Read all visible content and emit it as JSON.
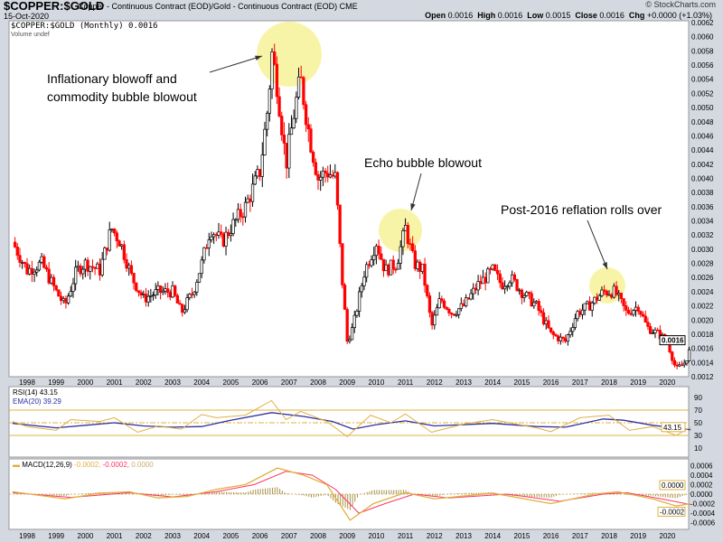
{
  "header": {
    "symbol": "$COPPER:$GOLD",
    "description": "Copper - Continuous Contract (EOD)/Gold - Continuous Contract (EOD)",
    "exchange": "CME",
    "date": "15-Oct-2020",
    "watermark": "© StockCharts.com",
    "ohlc": {
      "open_label": "Open",
      "open": "0.0016",
      "high_label": "High",
      "high": "0.0016",
      "low_label": "Low",
      "low": "0.0015",
      "close_label": "Close",
      "close": "0.0016",
      "chg_label": "Chg",
      "chg": "+0.0000 (+1.03%)"
    }
  },
  "legend": {
    "price": "$COPPER:$GOLD (Monthly) 0.0016",
    "volume": "Volume undef",
    "rsi": "RSI(14) 43.15",
    "ema": "EMA(20) 39.29",
    "macd": "MACD(12,26,9)",
    "macd_v1": "-0.0002,",
    "macd_v2": "-0.0002,",
    "macd_v3": "0.0000"
  },
  "annotations": [
    "Inflationary blowoff and",
    "commodity bubble blowout",
    "Echo bubble blowout",
    "Post-2016 reflation rolls over"
  ],
  "colors": {
    "up": "#000000",
    "down": "#ff0000",
    "highlight": "#f5f08a",
    "rsi": "#e0b040",
    "ema": "#3030a0",
    "macd": "#e0b040",
    "signal": "#ff3366"
  },
  "chart_data": [
    {
      "type": "candlestick",
      "title": "$COPPER:$GOLD (Monthly)",
      "scale": "linear",
      "ylim": [
        0.0012,
        0.0062
      ],
      "y_ticks": [
        "0.0062",
        "0.0060",
        "0.0058",
        "0.0056",
        "0.0054",
        "0.0052",
        "0.0050",
        "0.0048",
        "0.0046",
        "0.0044",
        "0.0042",
        "0.0040",
        "0.0038",
        "0.0036",
        "0.0034",
        "0.0032",
        "0.0030",
        "0.0028",
        "0.0026",
        "0.0024",
        "0.0022",
        "0.0020",
        "0.0018",
        "0.0016",
        "0.0014",
        "0.0012"
      ],
      "x_ticks": [
        "1998",
        "1999",
        "2000",
        "2001",
        "2002",
        "2003",
        "2004",
        "2005",
        "2006",
        "2007",
        "2008",
        "2009",
        "2010",
        "2011",
        "2012",
        "2013",
        "2014",
        "2015",
        "2016",
        "2017",
        "2018",
        "2019",
        "2020"
      ],
      "last_value": "0.0016",
      "closes": [
        [
          1997.5,
          0.0031
        ],
        [
          1998.0,
          0.0027
        ],
        [
          1998.5,
          0.0028
        ],
        [
          1999.0,
          0.0024
        ],
        [
          1999.3,
          0.0022
        ],
        [
          1999.7,
          0.0027
        ],
        [
          2000.0,
          0.0028
        ],
        [
          2000.5,
          0.0027
        ],
        [
          2000.9,
          0.0033
        ],
        [
          2001.2,
          0.0031
        ],
        [
          2001.6,
          0.0026
        ],
        [
          2002.0,
          0.0023
        ],
        [
          2002.5,
          0.0024
        ],
        [
          2003.0,
          0.0024
        ],
        [
          2003.3,
          0.0021
        ],
        [
          2003.7,
          0.0024
        ],
        [
          2004.0,
          0.0028
        ],
        [
          2004.3,
          0.0033
        ],
        [
          2004.7,
          0.0031
        ],
        [
          2005.0,
          0.0033
        ],
        [
          2005.5,
          0.0036
        ],
        [
          2006.0,
          0.0041
        ],
        [
          2006.3,
          0.0051
        ],
        [
          2006.4,
          0.0058
        ],
        [
          2006.6,
          0.0053
        ],
        [
          2006.9,
          0.0042
        ],
        [
          2007.2,
          0.005
        ],
        [
          2007.4,
          0.0054
        ],
        [
          2007.7,
          0.0046
        ],
        [
          2008.0,
          0.004
        ],
        [
          2008.3,
          0.0041
        ],
        [
          2008.6,
          0.004
        ],
        [
          2008.8,
          0.0027
        ],
        [
          2009.0,
          0.0017
        ],
        [
          2009.2,
          0.0019
        ],
        [
          2009.6,
          0.0027
        ],
        [
          2010.0,
          0.0031
        ],
        [
          2010.3,
          0.0027
        ],
        [
          2010.7,
          0.0028
        ],
        [
          2011.0,
          0.0033
        ],
        [
          2011.3,
          0.0028
        ],
        [
          2011.6,
          0.0027
        ],
        [
          2011.9,
          0.0019
        ],
        [
          2012.2,
          0.0023
        ],
        [
          2012.6,
          0.0021
        ],
        [
          2013.0,
          0.0022
        ],
        [
          2013.5,
          0.0025
        ],
        [
          2014.0,
          0.0027
        ],
        [
          2014.3,
          0.0025
        ],
        [
          2014.6,
          0.0026
        ],
        [
          2015.0,
          0.0024
        ],
        [
          2015.5,
          0.0022
        ],
        [
          2016.0,
          0.0018
        ],
        [
          2016.5,
          0.0017
        ],
        [
          2016.9,
          0.0021
        ],
        [
          2017.3,
          0.0022
        ],
        [
          2017.8,
          0.0024
        ],
        [
          2018.2,
          0.0024
        ],
        [
          2018.6,
          0.0021
        ],
        [
          2019.0,
          0.0022
        ],
        [
          2019.3,
          0.0019
        ],
        [
          2019.7,
          0.0018
        ],
        [
          2020.0,
          0.0017
        ],
        [
          2020.3,
          0.0013
        ],
        [
          2020.6,
          0.0014
        ],
        [
          2020.8,
          0.0016
        ]
      ]
    },
    {
      "type": "line",
      "title": "RSI(14)",
      "ylim": [
        0,
        100
      ],
      "y_ticks": [
        "90",
        "70",
        "50",
        "30",
        "10"
      ],
      "levels": [
        70,
        30
      ],
      "last_value": "43.15",
      "rsi": [
        [
          1997.5,
          52
        ],
        [
          1998.0,
          44
        ],
        [
          1999.0,
          38
        ],
        [
          1999.5,
          55
        ],
        [
          2000.5,
          52
        ],
        [
          2001.0,
          58
        ],
        [
          2001.8,
          35
        ],
        [
          2002.5,
          45
        ],
        [
          2003.3,
          40
        ],
        [
          2004.0,
          63
        ],
        [
          2004.5,
          58
        ],
        [
          2005.5,
          62
        ],
        [
          2006.4,
          85
        ],
        [
          2006.9,
          55
        ],
        [
          2007.4,
          68
        ],
        [
          2008.3,
          52
        ],
        [
          2009.0,
          28
        ],
        [
          2009.8,
          62
        ],
        [
          2010.5,
          50
        ],
        [
          2011.0,
          64
        ],
        [
          2011.9,
          35
        ],
        [
          2013.0,
          48
        ],
        [
          2014.0,
          55
        ],
        [
          2015.5,
          42
        ],
        [
          2016.0,
          36
        ],
        [
          2017.0,
          58
        ],
        [
          2018.0,
          62
        ],
        [
          2018.7,
          38
        ],
        [
          2019.5,
          44
        ],
        [
          2020.3,
          30
        ],
        [
          2020.8,
          43
        ]
      ],
      "ema": [
        [
          1997.5,
          49
        ],
        [
          1999.0,
          42
        ],
        [
          2000.0,
          46
        ],
        [
          2001.0,
          50
        ],
        [
          2002.0,
          45
        ],
        [
          2003.0,
          43
        ],
        [
          2004.0,
          44
        ],
        [
          2005.0,
          54
        ],
        [
          2006.4,
          66
        ],
        [
          2007.5,
          60
        ],
        [
          2008.5,
          52
        ],
        [
          2009.2,
          40
        ],
        [
          2010.0,
          47
        ],
        [
          2011.0,
          53
        ],
        [
          2012.0,
          45
        ],
        [
          2014.0,
          49
        ],
        [
          2015.5,
          44
        ],
        [
          2016.5,
          43
        ],
        [
          2017.8,
          56
        ],
        [
          2018.5,
          54
        ],
        [
          2019.5,
          46
        ],
        [
          2020.8,
          39
        ]
      ]
    },
    {
      "type": "line",
      "title": "MACD(12,26,9)",
      "ylim": [
        -0.0007,
        0.0007
      ],
      "y_ticks": [
        "0.0006",
        "0.0004",
        "0.0002",
        "0.0000",
        "-0.0002",
        "-0.0004",
        "-0.0006"
      ],
      "last_macd": "-0.0002",
      "last_hist": "0.0000",
      "macd": [
        [
          1997.5,
          5e-05
        ],
        [
          1999.3,
          -0.0001
        ],
        [
          2000.5,
          2e-05
        ],
        [
          2001.5,
          5e-05
        ],
        [
          2002.5,
          -8e-05
        ],
        [
          2003.5,
          -5e-05
        ],
        [
          2004.5,
          0.0001
        ],
        [
          2005.5,
          0.0002
        ],
        [
          2006.6,
          0.00055
        ],
        [
          2007.5,
          0.0004
        ],
        [
          2008.3,
          0.0002
        ],
        [
          2009.1,
          -0.00055
        ],
        [
          2009.9,
          -0.0002
        ],
        [
          2011.0,
          3e-05
        ],
        [
          2012.0,
          -0.0001
        ],
        [
          2014.0,
          2e-05
        ],
        [
          2016.0,
          -0.0002
        ],
        [
          2017.5,
          0.0
        ],
        [
          2018.3,
          5e-05
        ],
        [
          2019.5,
          -0.0001
        ],
        [
          2020.3,
          -0.00025
        ],
        [
          2020.8,
          -0.0002
        ]
      ],
      "signal": [
        [
          1997.5,
          3e-05
        ],
        [
          1999.5,
          -7e-05
        ],
        [
          2001.5,
          3e-05
        ],
        [
          2003.0,
          -6e-05
        ],
        [
          2004.5,
          5e-05
        ],
        [
          2005.8,
          0.0002
        ],
        [
          2006.9,
          0.00048
        ],
        [
          2007.8,
          0.0004
        ],
        [
          2008.6,
          0.0001
        ],
        [
          2009.4,
          -0.0004
        ],
        [
          2010.3,
          -0.0002
        ],
        [
          2011.3,
          0.0
        ],
        [
          2012.5,
          -8e-05
        ],
        [
          2014.5,
          0.0
        ],
        [
          2016.3,
          -0.00015
        ],
        [
          2017.8,
          0.0
        ],
        [
          2018.6,
          3e-05
        ],
        [
          2019.8,
          -0.0001
        ],
        [
          2020.8,
          -0.00022
        ]
      ]
    }
  ]
}
